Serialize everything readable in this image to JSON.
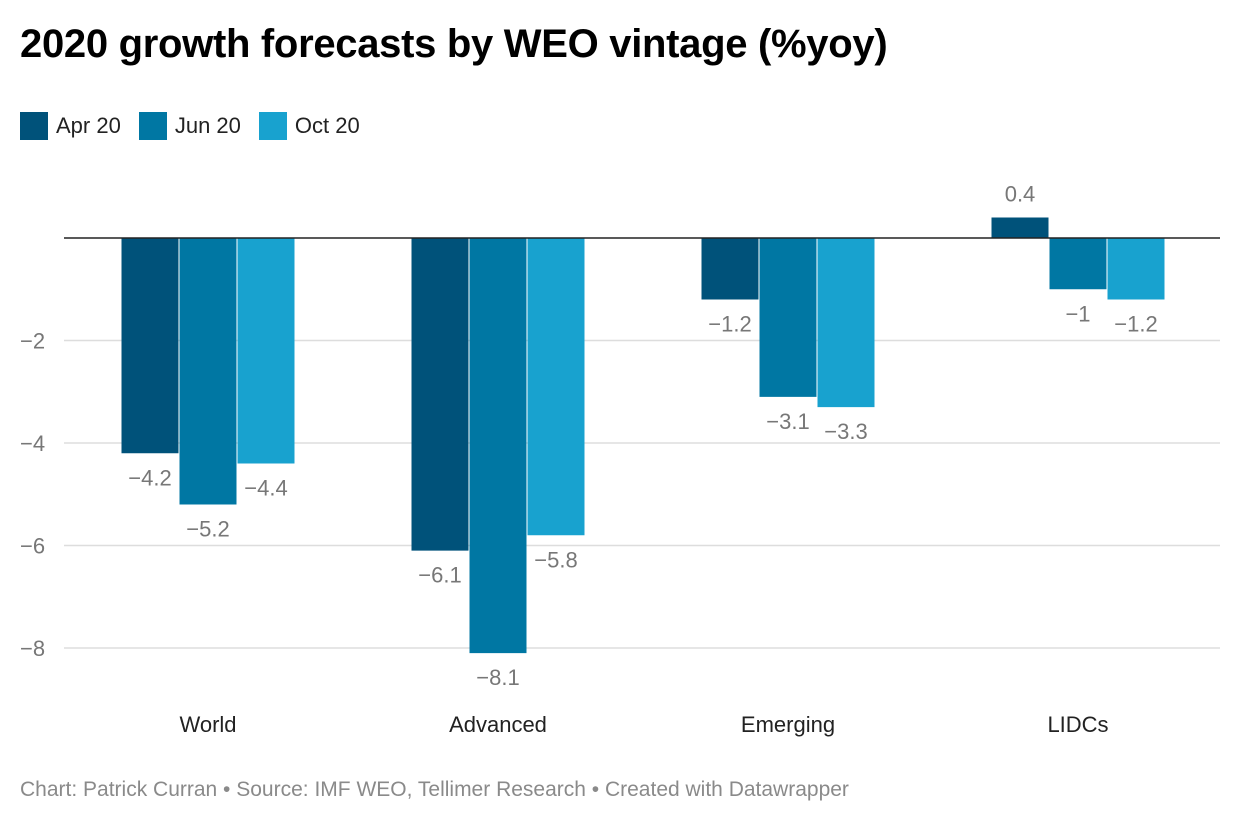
{
  "title": "2020 growth forecasts by WEO vintage (%yoy)",
  "footer": "Chart: Patrick Curran • Source: IMF WEO, Tellimer Research • Created with Datawrapper",
  "colors": {
    "apr": "#00527a",
    "jun": "#0077a3",
    "oct": "#18a2cf",
    "grid": "#dddddd",
    "axis": "#222222",
    "label": "#777777"
  },
  "chart_data": {
    "type": "bar",
    "title": "2020 growth forecasts by WEO vintage (%yoy)",
    "categories": [
      "World",
      "Advanced",
      "Emerging",
      "LIDCs"
    ],
    "series": [
      {
        "name": "Apr 20",
        "values": [
          -4.2,
          -6.1,
          -1.2,
          0.4
        ],
        "labels": [
          "−4.2",
          "−6.1",
          "−1.2",
          "0.4"
        ]
      },
      {
        "name": "Jun 20",
        "values": [
          -5.2,
          -8.1,
          -3.1,
          -1.0
        ],
        "labels": [
          "−5.2",
          "−8.1",
          "−3.1",
          "−1"
        ]
      },
      {
        "name": "Oct 20",
        "values": [
          -4.4,
          -5.8,
          -3.3,
          -1.2
        ],
        "labels": [
          "−4.4",
          "−5.8",
          "−3.3",
          "−1.2"
        ]
      }
    ],
    "yticks": [
      -2,
      -4,
      -6,
      -8
    ],
    "ytick_labels": [
      "−2",
      "−4",
      "−6",
      "−8"
    ],
    "ylim": [
      -9.5,
      1.0
    ],
    "xlabel": "",
    "ylabel": "",
    "legend_position": "top-left",
    "grid": true
  }
}
